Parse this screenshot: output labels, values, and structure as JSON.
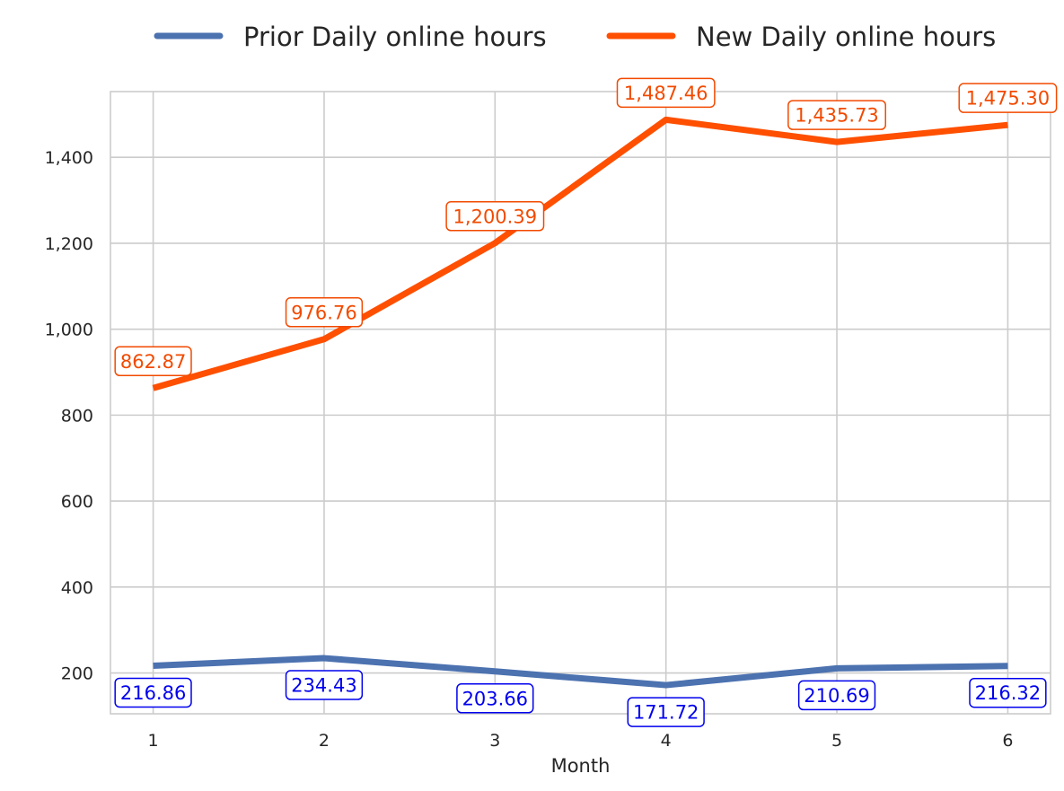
{
  "chart_data": {
    "type": "line",
    "x": [
      1,
      2,
      3,
      4,
      5,
      6
    ],
    "xlabel": "Month",
    "ylabel": "",
    "ylim": [
      105,
      1553
    ],
    "xlim": [
      0.75,
      6.25
    ],
    "yticks": [
      200,
      400,
      600,
      800,
      1000,
      1200,
      1400
    ],
    "ytick_labels": [
      "200",
      "400",
      "600",
      "800",
      "1,000",
      "1,200",
      "1,400"
    ],
    "xtick_labels": [
      "1",
      "2",
      "3",
      "4",
      "5",
      "6"
    ],
    "grid": true,
    "legend_position": "top-center",
    "series": [
      {
        "name": "Prior Daily online hours",
        "values": [
          216.86,
          234.43,
          203.66,
          171.72,
          210.69,
          216.32
        ],
        "labels": [
          "216.86",
          "234.43",
          "203.66",
          "171.72",
          "210.69",
          "216.32"
        ],
        "color": "#4C72B0",
        "label_color": "#0000EE",
        "label_position": "below"
      },
      {
        "name": "New Daily online hours",
        "values": [
          862.87,
          976.76,
          1200.39,
          1487.46,
          1435.73,
          1475.3
        ],
        "labels": [
          "862.87",
          "976.76",
          "1,200.39",
          "1,487.46",
          "1,435.73",
          "1,475.30"
        ],
        "color": "#FF4F00",
        "label_color": "#F24A00",
        "label_position": "above"
      }
    ]
  }
}
